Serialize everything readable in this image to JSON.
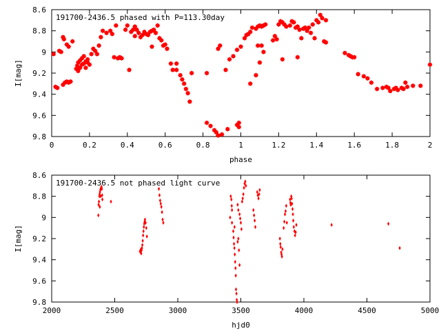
{
  "chart_data": [
    {
      "type": "scatter",
      "title": "191700-2436.5 phased with P=113.30day",
      "xlabel": "phase",
      "ylabel": "I[mag]",
      "xlim": [
        0,
        2
      ],
      "ylim": [
        9.8,
        8.6
      ],
      "y_inverted": true,
      "xticks": [
        0,
        0.2,
        0.4,
        0.6,
        0.8,
        1,
        1.2,
        1.4,
        1.6,
        1.8,
        2
      ],
      "xtick_labels": [
        "0",
        "0.2",
        "0.4",
        "0.6",
        "0.8",
        "1",
        "1.2",
        "1.4",
        "1.6",
        "1.8",
        "2"
      ],
      "yticks": [
        8.6,
        8.8,
        9,
        9.2,
        9.4,
        9.6,
        9.8
      ],
      "ytick_labels": [
        "8.6",
        "8.8",
        "9",
        "9.2",
        "9.4",
        "9.6",
        "9.8"
      ],
      "grid": false,
      "marker_color": "#ff0000",
      "marker": "star",
      "points": [
        [
          0.01,
          9.02
        ],
        [
          0.02,
          9.33
        ],
        [
          0.03,
          9.34
        ],
        [
          0.04,
          8.99
        ],
        [
          0.05,
          9.0
        ],
        [
          0.06,
          8.86
        ],
        [
          0.065,
          8.88
        ],
        [
          0.06,
          9.31
        ],
        [
          0.07,
          9.29
        ],
        [
          0.08,
          9.28
        ],
        [
          0.09,
          9.29
        ],
        [
          0.1,
          9.28
        ],
        [
          0.08,
          8.93
        ],
        [
          0.09,
          8.95
        ],
        [
          0.11,
          8.9
        ],
        [
          0.13,
          9.16
        ],
        [
          0.135,
          9.13
        ],
        [
          0.14,
          9.1
        ],
        [
          0.15,
          9.08
        ],
        [
          0.16,
          9.12
        ],
        [
          0.17,
          9.11
        ],
        [
          0.18,
          9.09
        ],
        [
          0.19,
          9.1
        ],
        [
          0.14,
          9.18
        ],
        [
          0.15,
          9.15
        ],
        [
          0.16,
          9.06
        ],
        [
          0.17,
          9.04
        ],
        [
          0.18,
          9.15
        ],
        [
          0.19,
          9.07
        ],
        [
          0.2,
          9.12
        ],
        [
          0.21,
          9.02
        ],
        [
          0.22,
          8.97
        ],
        [
          0.23,
          8.99
        ],
        [
          0.25,
          8.94
        ],
        [
          0.24,
          9.02
        ],
        [
          0.26,
          8.86
        ],
        [
          0.27,
          8.8
        ],
        [
          0.29,
          8.82
        ],
        [
          0.31,
          8.8
        ],
        [
          0.32,
          8.83
        ],
        [
          0.34,
          8.75
        ],
        [
          0.33,
          9.05
        ],
        [
          0.35,
          9.06
        ],
        [
          0.36,
          9.05
        ],
        [
          0.37,
          9.06
        ],
        [
          0.39,
          8.79
        ],
        [
          0.4,
          8.75
        ],
        [
          0.41,
          9.17
        ],
        [
          0.42,
          8.81
        ],
        [
          0.43,
          8.79
        ],
        [
          0.44,
          8.85
        ],
        [
          0.44,
          8.76
        ],
        [
          0.45,
          8.79
        ],
        [
          0.46,
          8.82
        ],
        [
          0.47,
          8.86
        ],
        [
          0.48,
          8.84
        ],
        [
          0.49,
          8.81
        ],
        [
          0.5,
          8.83
        ],
        [
          0.51,
          8.84
        ],
        [
          0.52,
          8.81
        ],
        [
          0.53,
          8.8
        ],
        [
          0.53,
          8.95
        ],
        [
          0.54,
          8.79
        ],
        [
          0.55,
          8.82
        ],
        [
          0.56,
          8.75
        ],
        [
          0.57,
          8.87
        ],
        [
          0.58,
          8.89
        ],
        [
          0.59,
          8.94
        ],
        [
          0.6,
          8.93
        ],
        [
          0.61,
          8.97
        ],
        [
          0.63,
          9.11
        ],
        [
          0.64,
          9.17
        ],
        [
          0.66,
          9.11
        ],
        [
          0.66,
          9.17
        ],
        [
          0.68,
          9.22
        ],
        [
          0.69,
          9.26
        ],
        [
          0.7,
          9.3
        ],
        [
          0.71,
          9.35
        ],
        [
          0.72,
          9.39
        ],
        [
          0.73,
          9.47
        ],
        [
          0.74,
          9.2
        ],
        [
          0.82,
          9.67
        ],
        [
          0.84,
          9.7
        ],
        [
          0.86,
          9.74
        ],
        [
          0.87,
          9.76
        ],
        [
          0.88,
          9.79
        ],
        [
          0.9,
          9.78
        ],
        [
          0.93,
          9.73
        ],
        [
          0.98,
          9.69
        ],
        [
          0.99,
          9.67
        ],
        [
          0.99,
          9.71
        ],
        [
          0.96,
          9.04
        ],
        [
          0.94,
          9.07
        ],
        [
          0.92,
          9.17
        ],
        [
          0.88,
          8.97
        ],
        [
          0.89,
          8.94
        ],
        [
          0.82,
          9.2
        ],
        [
          0.98,
          8.98
        ],
        [
          1.0,
          8.95
        ],
        [
          1.02,
          8.87
        ],
        [
          1.03,
          8.84
        ],
        [
          1.04,
          8.83
        ],
        [
          1.05,
          8.81
        ],
        [
          1.06,
          8.77
        ],
        [
          1.08,
          8.78
        ],
        [
          1.09,
          8.76
        ],
        [
          1.1,
          8.75
        ],
        [
          1.11,
          8.76
        ],
        [
          1.12,
          8.75
        ],
        [
          1.13,
          8.74
        ],
        [
          1.05,
          9.3
        ],
        [
          1.08,
          9.22
        ],
        [
          1.1,
          9.1
        ],
        [
          1.09,
          8.94
        ],
        [
          1.11,
          8.94
        ],
        [
          1.12,
          9.0
        ],
        [
          1.17,
          8.89
        ],
        [
          1.18,
          8.85
        ],
        [
          1.19,
          8.88
        ],
        [
          1.2,
          8.74
        ],
        [
          1.21,
          8.71
        ],
        [
          1.22,
          8.72
        ],
        [
          1.23,
          8.74
        ],
        [
          1.24,
          8.76
        ],
        [
          1.26,
          8.75
        ],
        [
          1.22,
          9.07
        ],
        [
          1.27,
          8.71
        ],
        [
          1.28,
          8.72
        ],
        [
          1.29,
          8.77
        ],
        [
          1.3,
          8.76
        ],
        [
          1.31,
          8.79
        ],
        [
          1.32,
          8.87
        ],
        [
          1.33,
          8.78
        ],
        [
          1.34,
          8.77
        ],
        [
          1.35,
          8.8
        ],
        [
          1.36,
          8.77
        ],
        [
          1.37,
          8.82
        ],
        [
          1.38,
          8.74
        ],
        [
          1.39,
          8.87
        ],
        [
          1.4,
          8.7
        ],
        [
          1.41,
          8.72
        ],
        [
          1.42,
          8.65
        ],
        [
          1.43,
          8.68
        ],
        [
          1.45,
          8.7
        ],
        [
          1.44,
          8.9
        ],
        [
          1.45,
          8.91
        ],
        [
          1.3,
          9.05
        ],
        [
          1.55,
          9.01
        ],
        [
          1.57,
          9.03
        ],
        [
          1.58,
          9.04
        ],
        [
          1.59,
          9.05
        ],
        [
          1.6,
          9.05
        ],
        [
          1.62,
          9.21
        ],
        [
          1.65,
          9.23
        ],
        [
          1.67,
          9.25
        ],
        [
          1.69,
          9.29
        ],
        [
          1.72,
          9.35
        ],
        [
          1.75,
          9.34
        ],
        [
          1.77,
          9.33
        ],
        [
          1.78,
          9.34
        ],
        [
          1.79,
          9.37
        ],
        [
          1.81,
          9.35
        ],
        [
          1.82,
          9.34
        ],
        [
          1.83,
          9.36
        ],
        [
          1.85,
          9.34
        ],
        [
          1.86,
          9.35
        ],
        [
          1.87,
          9.29
        ],
        [
          1.88,
          9.33
        ],
        [
          1.91,
          9.32
        ],
        [
          1.95,
          9.32
        ],
        [
          2.0,
          9.12
        ]
      ]
    },
    {
      "type": "scatter",
      "title": "191700-2436.5 not phased light curve",
      "xlabel": "hjd0",
      "ylabel": "I[mag]",
      "xlim": [
        2000,
        5000
      ],
      "ylim": [
        9.8,
        8.6
      ],
      "y_inverted": true,
      "xticks": [
        2000,
        2500,
        3000,
        3500,
        4000,
        4500,
        5000
      ],
      "xtick_labels": [
        "2000",
        "2500",
        "3000",
        "3500",
        "4000",
        "4500",
        "5000"
      ],
      "yticks": [
        8.6,
        8.8,
        9,
        9.2,
        9.4,
        9.6,
        9.8
      ],
      "ytick_labels": [
        "8.6",
        "8.8",
        "9",
        "9.2",
        "9.4",
        "9.6",
        "9.8"
      ],
      "grid": false,
      "marker_color": "#ff0000",
      "marker": "diamond",
      "points": [
        [
          2370,
          8.98
        ],
        [
          2372,
          8.88
        ],
        [
          2375,
          8.85
        ],
        [
          2378,
          8.8
        ],
        [
          2380,
          8.78
        ],
        [
          2383,
          8.76
        ],
        [
          2386,
          8.74
        ],
        [
          2389,
          8.73
        ],
        [
          2392,
          8.72
        ],
        [
          2395,
          8.71
        ],
        [
          2398,
          8.73
        ],
        [
          2400,
          8.79
        ],
        [
          2402,
          8.83
        ],
        [
          2382,
          8.9
        ],
        [
          2388,
          8.8
        ],
        [
          2470,
          8.85
        ],
        [
          2700,
          9.32
        ],
        [
          2705,
          9.33
        ],
        [
          2710,
          9.34
        ],
        [
          2713,
          9.31
        ],
        [
          2716,
          9.29
        ],
        [
          2719,
          9.26
        ],
        [
          2722,
          9.22
        ],
        [
          2725,
          9.17
        ],
        [
          2728,
          9.13
        ],
        [
          2731,
          9.09
        ],
        [
          2734,
          9.06
        ],
        [
          2737,
          9.04
        ],
        [
          2740,
          9.02
        ],
        [
          2745,
          9.05
        ],
        [
          2750,
          9.1
        ],
        [
          2755,
          9.18
        ],
        [
          2708,
          9.3
        ],
        [
          2850,
          8.73
        ],
        [
          2855,
          8.79
        ],
        [
          2860,
          8.84
        ],
        [
          2865,
          8.87
        ],
        [
          2870,
          8.9
        ],
        [
          2875,
          8.95
        ],
        [
          2880,
          9.02
        ],
        [
          2885,
          9.05
        ],
        [
          3420,
          8.8
        ],
        [
          3425,
          8.83
        ],
        [
          3428,
          8.89
        ],
        [
          3430,
          8.93
        ],
        [
          3415,
          9.0
        ],
        [
          3440,
          9.13
        ],
        [
          3443,
          9.19
        ],
        [
          3446,
          9.25
        ],
        [
          3449,
          9.29
        ],
        [
          3452,
          9.35
        ],
        [
          3455,
          9.42
        ],
        [
          3458,
          9.48
        ],
        [
          3460,
          9.55
        ],
        [
          3462,
          9.68
        ],
        [
          3465,
          9.72
        ],
        [
          3468,
          9.78
        ],
        [
          3470,
          9.8
        ],
        [
          3430,
          9.05
        ],
        [
          3450,
          9.09
        ],
        [
          3475,
          8.88
        ],
        [
          3480,
          8.93
        ],
        [
          3490,
          8.97
        ],
        [
          3495,
          9.01
        ],
        [
          3500,
          9.05
        ],
        [
          3505,
          9.11
        ],
        [
          3510,
          8.85
        ],
        [
          3515,
          8.82
        ],
        [
          3520,
          8.78
        ],
        [
          3525,
          8.72
        ],
        [
          3530,
          8.68
        ],
        [
          3535,
          8.66
        ],
        [
          3540,
          8.7
        ],
        [
          3475,
          9.23
        ],
        [
          3480,
          9.2
        ],
        [
          3485,
          9.31
        ],
        [
          3490,
          9.45
        ],
        [
          3600,
          8.93
        ],
        [
          3605,
          8.98
        ],
        [
          3610,
          9.03
        ],
        [
          3615,
          9.09
        ],
        [
          3630,
          8.76
        ],
        [
          3635,
          8.79
        ],
        [
          3640,
          8.82
        ],
        [
          3645,
          8.78
        ],
        [
          3650,
          8.74
        ],
        [
          3810,
          9.2
        ],
        [
          3813,
          9.25
        ],
        [
          3816,
          9.28
        ],
        [
          3820,
          9.33
        ],
        [
          3823,
          9.35
        ],
        [
          3826,
          9.37
        ],
        [
          3830,
          9.3
        ],
        [
          3840,
          9.1
        ],
        [
          3845,
          9.04
        ],
        [
          3850,
          8.97
        ],
        [
          3855,
          8.94
        ],
        [
          3860,
          8.89
        ],
        [
          3865,
          9.05
        ],
        [
          3890,
          8.83
        ],
        [
          3893,
          8.86
        ],
        [
          3896,
          8.88
        ],
        [
          3900,
          8.8
        ],
        [
          3903,
          8.82
        ],
        [
          3906,
          8.87
        ],
        [
          3910,
          8.92
        ],
        [
          3913,
          8.97
        ],
        [
          3916,
          9.03
        ],
        [
          3920,
          9.09
        ],
        [
          3925,
          9.13
        ],
        [
          3930,
          9.17
        ],
        [
          3935,
          9.14
        ],
        [
          3940,
          9.07
        ],
        [
          4220,
          9.07
        ],
        [
          4670,
          9.06
        ],
        [
          4760,
          9.29
        ]
      ]
    }
  ]
}
